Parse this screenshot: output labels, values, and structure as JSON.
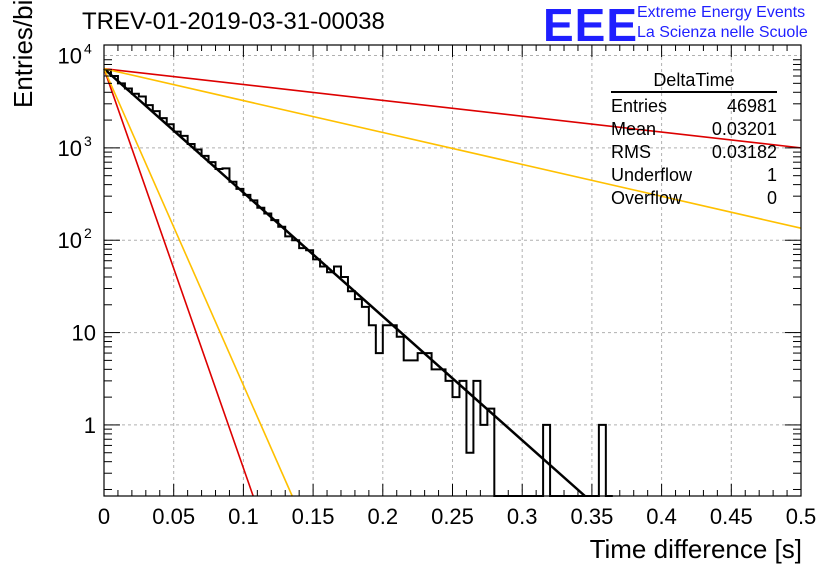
{
  "title": "TREV-01-2019-03-31-00038",
  "logo": {
    "mark": "EEE",
    "line1": "Extreme Energy Events",
    "line2": "La Scienza nelle Scuole",
    "color": "#1f1fff"
  },
  "stats_box": {
    "title": "DeltaTime",
    "rows": [
      {
        "label": "Entries",
        "value": "46981"
      },
      {
        "label": "Mean",
        "value": "0.03201"
      },
      {
        "label": "RMS",
        "value": "0.03182"
      },
      {
        "label": "Underflow",
        "value": "1"
      },
      {
        "label": "Overflow",
        "value": "0"
      }
    ]
  },
  "chart_data": {
    "type": "line",
    "xlabel": "Time difference [s]",
    "ylabel": "Entries/bin",
    "xlim": [
      0,
      0.5
    ],
    "ylim": [
      0.17,
      13000
    ],
    "yscale": "log",
    "grid": true,
    "x_ticks": [
      "0",
      "0.05",
      "0.1",
      "0.15",
      "0.2",
      "0.25",
      "0.3",
      "0.35",
      "0.4",
      "0.45",
      "0.5"
    ],
    "y_ticks": [
      {
        "value": 1,
        "label": "1"
      },
      {
        "value": 10,
        "label": "10"
      },
      {
        "value": 100,
        "label": "10",
        "exp": "2"
      },
      {
        "value": 1000,
        "label": "10",
        "exp": "3"
      },
      {
        "value": 10000,
        "label": "10",
        "exp": "4"
      }
    ],
    "histogram": {
      "name": "DeltaTime",
      "color": "#000000",
      "bin_width": 0.005,
      "bins": [
        [
          0.0,
          7000
        ],
        [
          0.005,
          6000
        ],
        [
          0.01,
          5000
        ],
        [
          0.015,
          4400
        ],
        [
          0.02,
          3850
        ],
        [
          0.025,
          3600
        ],
        [
          0.03,
          2900
        ],
        [
          0.035,
          2500
        ],
        [
          0.04,
          2100
        ],
        [
          0.045,
          1800
        ],
        [
          0.05,
          1500
        ],
        [
          0.055,
          1350
        ],
        [
          0.06,
          1100
        ],
        [
          0.065,
          960
        ],
        [
          0.07,
          820
        ],
        [
          0.075,
          700
        ],
        [
          0.08,
          590
        ],
        [
          0.085,
          600
        ],
        [
          0.09,
          430
        ],
        [
          0.095,
          360
        ],
        [
          0.1,
          310
        ],
        [
          0.105,
          270
        ],
        [
          0.11,
          225
        ],
        [
          0.115,
          195
        ],
        [
          0.12,
          165
        ],
        [
          0.125,
          140
        ],
        [
          0.13,
          110
        ],
        [
          0.135,
          100
        ],
        [
          0.14,
          82
        ],
        [
          0.145,
          78
        ],
        [
          0.15,
          62
        ],
        [
          0.155,
          52
        ],
        [
          0.16,
          45
        ],
        [
          0.165,
          52
        ],
        [
          0.17,
          40
        ],
        [
          0.175,
          28
        ],
        [
          0.18,
          23
        ],
        [
          0.185,
          19
        ],
        [
          0.19,
          12
        ],
        [
          0.195,
          6
        ],
        [
          0.2,
          12
        ],
        [
          0.205,
          12
        ],
        [
          0.21,
          9
        ],
        [
          0.215,
          5
        ],
        [
          0.22,
          5
        ],
        [
          0.225,
          6
        ],
        [
          0.23,
          6
        ],
        [
          0.235,
          4
        ],
        [
          0.24,
          4
        ],
        [
          0.245,
          3
        ],
        [
          0.25,
          2
        ],
        [
          0.255,
          3
        ],
        [
          0.26,
          0.5
        ],
        [
          0.265,
          3
        ],
        [
          0.27,
          1
        ],
        [
          0.275,
          1.5
        ],
        [
          0.28,
          0.1
        ],
        [
          0.285,
          0.1
        ],
        [
          0.29,
          0.1
        ],
        [
          0.295,
          0.1
        ],
        [
          0.3,
          0.1
        ],
        [
          0.305,
          0.1
        ],
        [
          0.31,
          0.1
        ],
        [
          0.315,
          1
        ],
        [
          0.32,
          0.1
        ],
        [
          0.325,
          0.1
        ],
        [
          0.33,
          0.1
        ],
        [
          0.335,
          0.1
        ],
        [
          0.34,
          0.1
        ],
        [
          0.345,
          0.1
        ],
        [
          0.35,
          0.1
        ],
        [
          0.355,
          1
        ],
        [
          0.36,
          0.1
        ]
      ]
    },
    "series": [
      {
        "color": "#000000",
        "points": [
          [
            0,
            7200
          ],
          [
            0.345,
            0.17
          ]
        ],
        "width": 2.5
      },
      {
        "color": "#dd0000",
        "points": [
          [
            0,
            7200
          ],
          [
            0.5,
            1000
          ]
        ],
        "width": 1.6
      },
      {
        "color": "#ffc000",
        "points": [
          [
            0,
            7200
          ],
          [
            0.5,
            135
          ]
        ],
        "width": 1.6
      },
      {
        "color": "#dd0000",
        "points": [
          [
            0,
            7200
          ],
          [
            0.107,
            0.17
          ]
        ],
        "width": 1.6
      },
      {
        "color": "#ffc000",
        "points": [
          [
            0,
            7200
          ],
          [
            0.135,
            0.17
          ]
        ],
        "width": 1.6
      }
    ]
  }
}
